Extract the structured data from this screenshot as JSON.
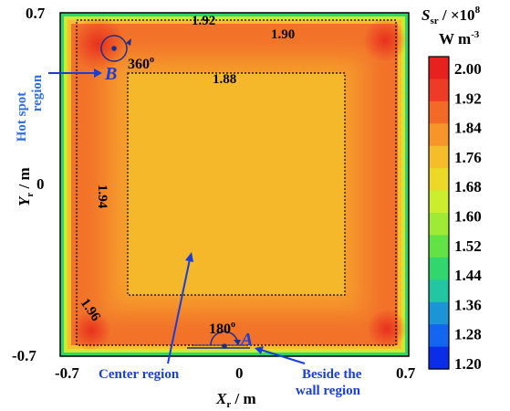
{
  "chart_data": {
    "type": "heatmap",
    "colorbar": {
      "title_main": "S",
      "title_sub": "sr",
      "title_rest": " / ×10",
      "title_exp": "8",
      "unit_main": "W m",
      "unit_exp": "-3",
      "levels": [
        "2.00",
        "1.92",
        "1.84",
        "1.76",
        "1.68",
        "1.60",
        "1.52",
        "1.44",
        "1.36",
        "1.28",
        "1.20"
      ],
      "colors": [
        "#e8201e",
        "#ee3b26",
        "#f26a26",
        "#f79528",
        "#f6bd2a",
        "#ecd827",
        "#ccec2e",
        "#9fea35",
        "#62e244",
        "#31d66e",
        "#22c7a1",
        "#1c95d6",
        "#1465f0",
        "#0a2ee8"
      ]
    },
    "x_axis": {
      "label_main": "X",
      "label_sub": "r",
      "label_unit": " / m",
      "ticks": [
        "-0.7",
        "0",
        "0.7"
      ],
      "range": [
        -0.7,
        0.7
      ]
    },
    "y_axis": {
      "label_main": "Y",
      "label_sub": "r",
      "label_unit": " / m",
      "ticks": [
        "0.7",
        "0",
        "-0.7"
      ],
      "range": [
        -0.7,
        0.7
      ]
    },
    "contour_labels": [
      "1.92",
      "1.90",
      "1.88",
      "1.94",
      "1.96"
    ],
    "annotations": {
      "point_a": "A",
      "point_b": "B",
      "angle_a": "180",
      "angle_b": "360",
      "degree_sign": "o",
      "hot_spot_line1": "Hot spot",
      "hot_spot_line2": "region",
      "center_region": "Center region",
      "beside_wall_line1": "Beside the",
      "beside_wall_line2": "wall region"
    },
    "colors": {
      "core": "#f6b82b",
      "annotation_blue": "#1a3fd6",
      "hot_spot_blue": "#2e6fe0"
    }
  }
}
